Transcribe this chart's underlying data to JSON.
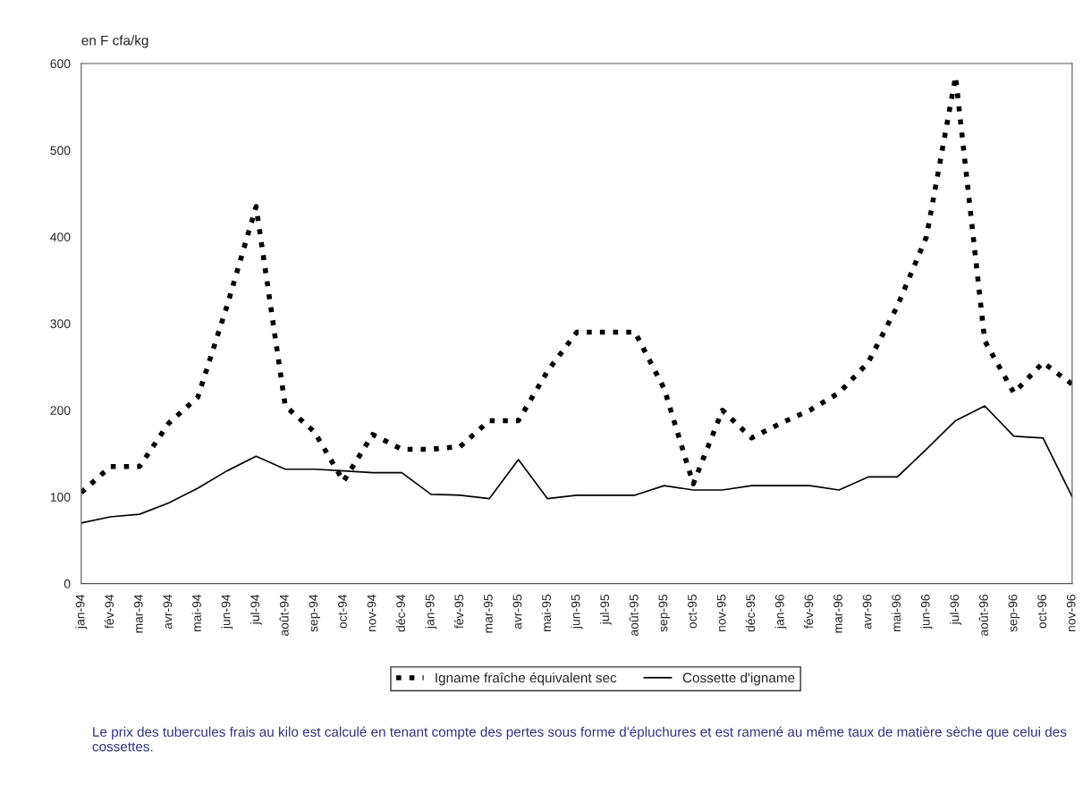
{
  "chart_data": {
    "type": "line",
    "ylabel": "en F cfa/kg",
    "categories": [
      "jan-94",
      "fév-94",
      "mar-94",
      "avr-94",
      "mai-94",
      "jun-94",
      "jul-94",
      "août-94",
      "sep-94",
      "oct-94",
      "nov-94",
      "déc-94",
      "jan-95",
      "fév-95",
      "mar-95",
      "avr-95",
      "mai-95",
      "jun-95",
      "jul-95",
      "août-95",
      "sep-95",
      "oct-95",
      "nov-95",
      "déc-95",
      "jan-96",
      "fév-96",
      "mar-96",
      "avr-96",
      "mai-96",
      "jun-96",
      "jul-96",
      "août-96",
      "sep-96",
      "oct-96",
      "nov-96"
    ],
    "series": [
      {
        "name": "Igname fraîche équivalent sec",
        "color": "#000000",
        "line_style": "dotted",
        "values": [
          105,
          135,
          135,
          185,
          215,
          320,
          435,
          205,
          175,
          118,
          172,
          155,
          155,
          158,
          188,
          188,
          245,
          290,
          290,
          290,
          225,
          115,
          200,
          168,
          185,
          200,
          220,
          255,
          320,
          400,
          585,
          280,
          220,
          255,
          230
        ]
      },
      {
        "name": "Cossette d'igname",
        "color": "#000000",
        "line_style": "solid",
        "values": [
          70,
          77,
          80,
          93,
          110,
          130,
          147,
          132,
          132,
          130,
          128,
          128,
          103,
          102,
          98,
          143,
          98,
          102,
          102,
          102,
          113,
          108,
          108,
          113,
          113,
          113,
          108,
          123,
          123,
          155,
          188,
          205,
          170,
          168,
          100
        ]
      }
    ],
    "ylim": [
      0,
      600
    ],
    "yticks": [
      0,
      100,
      200,
      300,
      400,
      500,
      600
    ],
    "grid": false,
    "legend": "bottom",
    "marker": "none",
    "annotations": [
      "Le prix des tubercules frais au kilo est calculé en tenant compte des pertes sous forme d'épluchures et est ramené au même taux de matière sèche que celui des cossettes."
    ]
  }
}
